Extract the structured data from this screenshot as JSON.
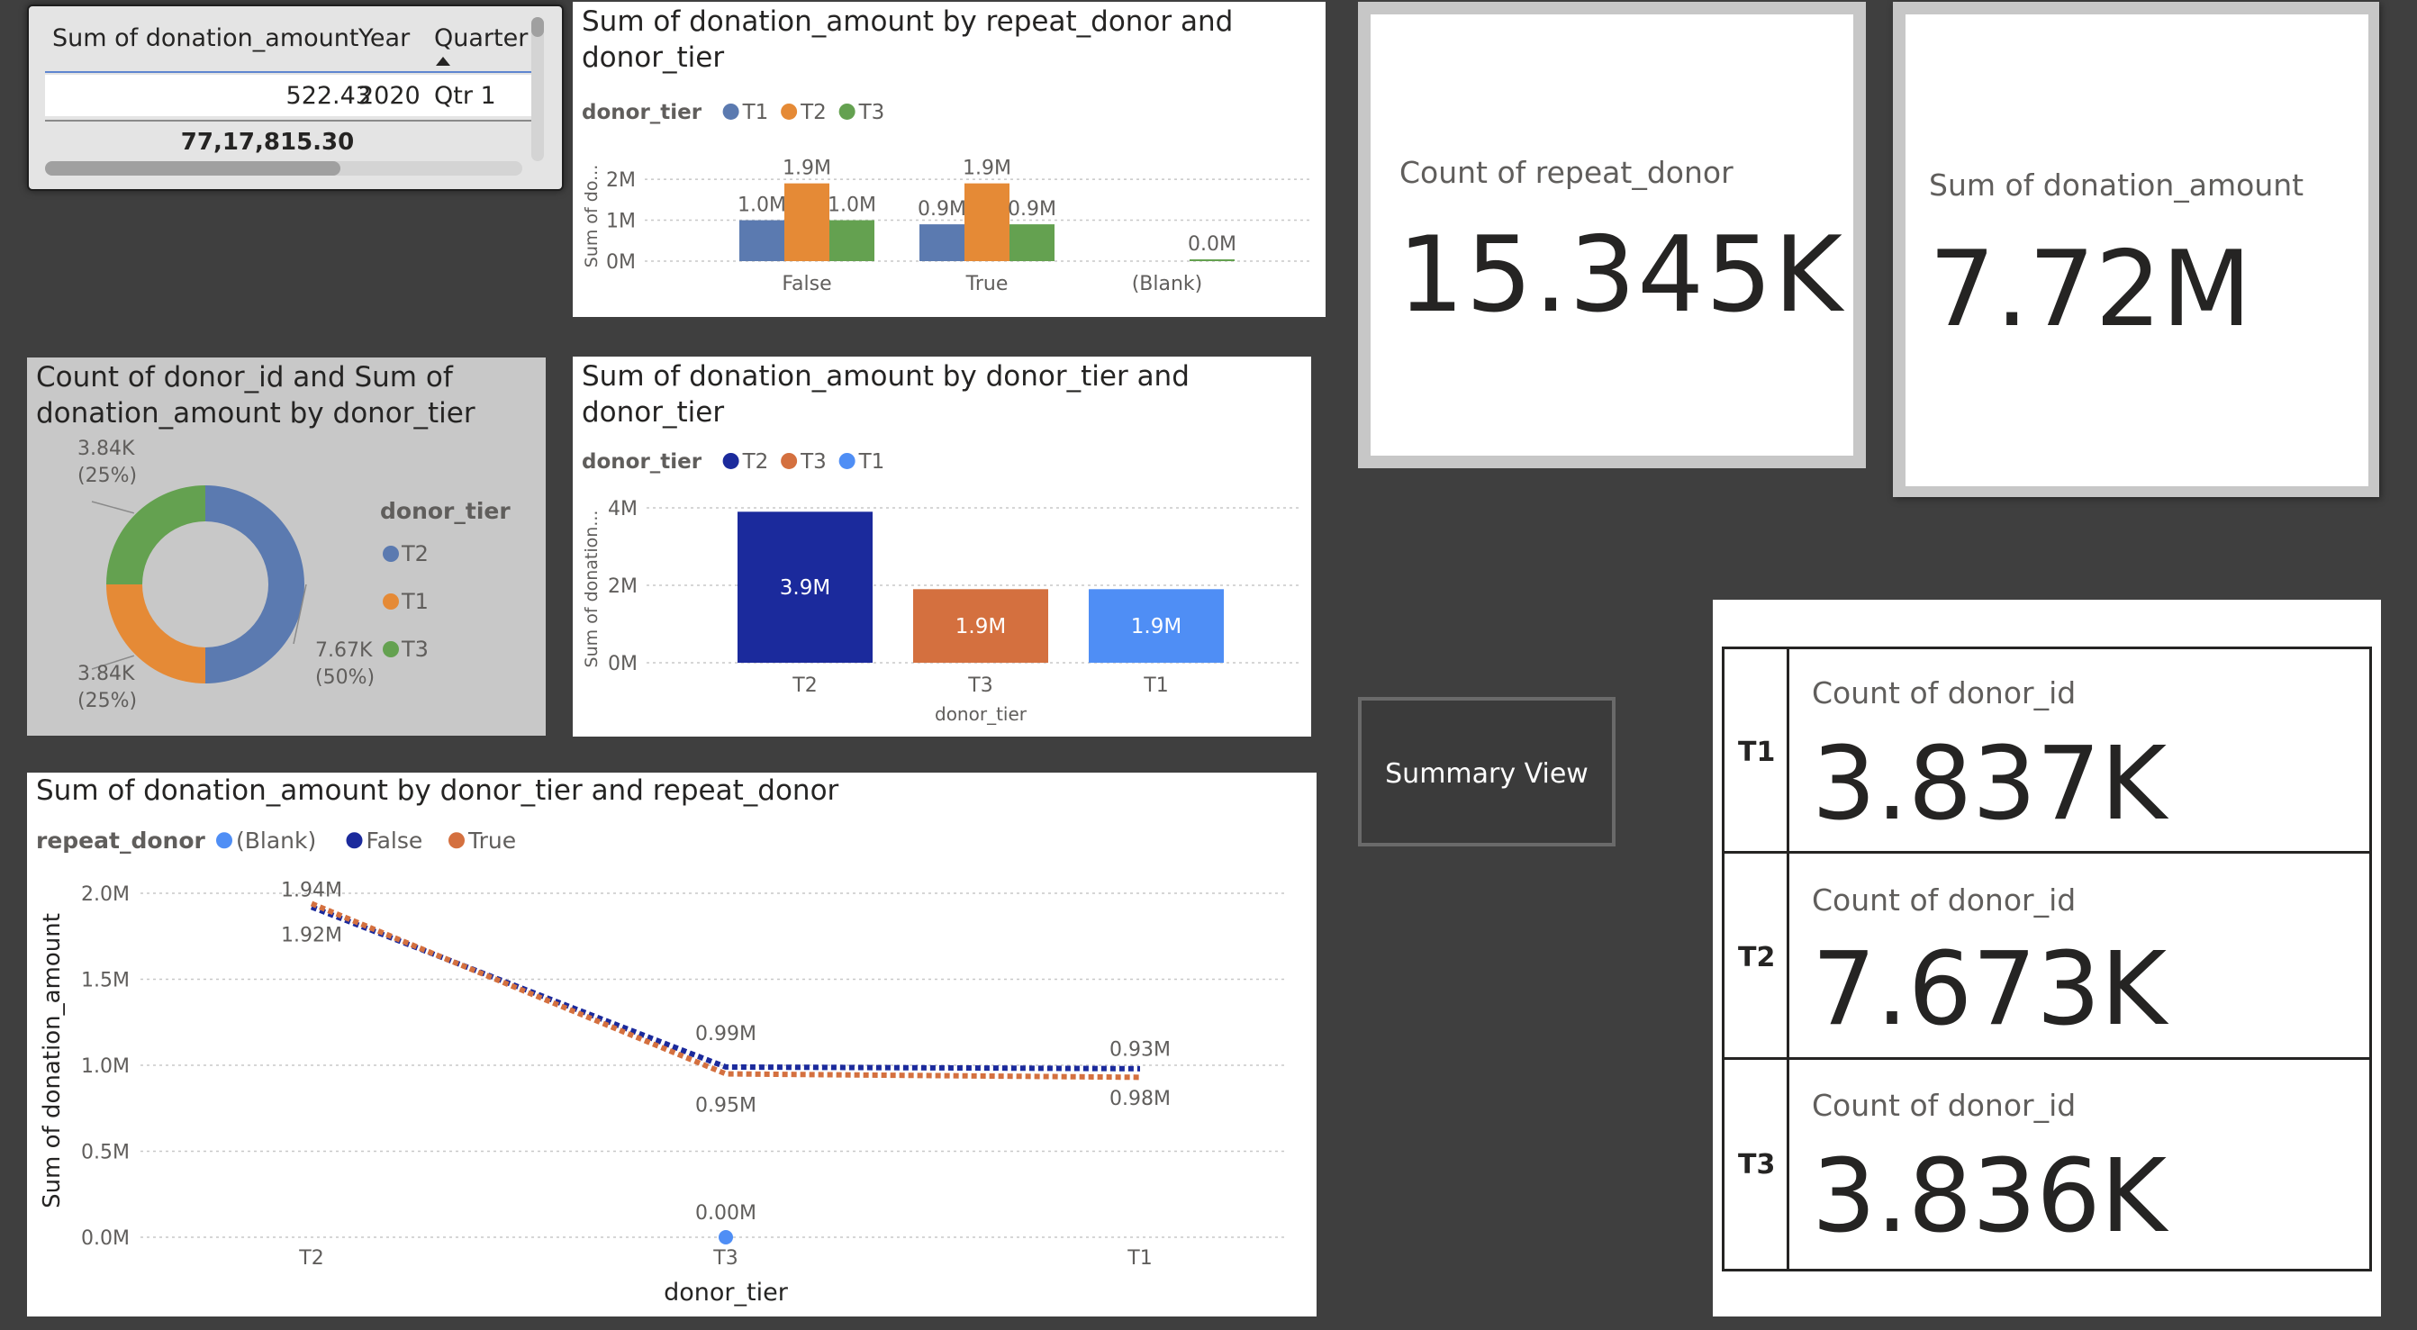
{
  "table_visual": {
    "headers": [
      "Sum of donation_amount",
      "Year",
      "Quarter"
    ],
    "rows": [
      [
        "522.43",
        "2020",
        "Qtr 1"
      ]
    ],
    "total": "77,17,815.30"
  },
  "chart_data": [
    {
      "id": "bar_repeat_tier",
      "type": "bar",
      "title": "Sum of donation_amount by repeat_donor and donor_tier",
      "legend_title": "donor_tier",
      "legend_position": "top-left",
      "categories": [
        "False",
        "True",
        "(Blank)"
      ],
      "ylabel": "Sum of do...",
      "yticks": [
        "0M",
        "1M",
        "2M"
      ],
      "ylim": [
        0,
        2200000
      ],
      "series": [
        {
          "name": "T1",
          "color": "#5b7ab0",
          "values": [
            1000000,
            900000,
            0
          ],
          "labels": [
            "1.0M",
            "0.9M",
            ""
          ]
        },
        {
          "name": "T2",
          "color": "#e58a36",
          "values": [
            1900000,
            1900000,
            0
          ],
          "labels": [
            "1.9M",
            "1.9M",
            ""
          ]
        },
        {
          "name": "T3",
          "color": "#64a150",
          "values": [
            1000000,
            900000,
            0
          ],
          "labels": [
            "1.0M",
            "0.9M",
            "0.0M"
          ]
        }
      ]
    },
    {
      "id": "donut_tier",
      "type": "pie",
      "title": "Count of donor_id and Sum of donation_amount by donor_tier",
      "legend_title": "donor_tier",
      "legend_position": "right",
      "slices": [
        {
          "name": "T2",
          "value": 7673,
          "label": "7.67K",
          "pct": "(50%)",
          "color": "#5b7ab0"
        },
        {
          "name": "T1",
          "value": 3837,
          "label": "3.84K",
          "pct": "(25%)",
          "color": "#e58a36"
        },
        {
          "name": "T3",
          "value": 3836,
          "label": "3.84K",
          "pct": "(25%)",
          "color": "#64a150"
        }
      ]
    },
    {
      "id": "bar_tier",
      "type": "bar",
      "title": "Sum of donation_amount by donor_tier and donor_tier",
      "legend_title": "donor_tier",
      "legend_position": "top-left",
      "categories": [
        "T2",
        "T3",
        "T1"
      ],
      "xlabel": "donor_tier",
      "ylabel": "Sum of donation...",
      "yticks": [
        "0M",
        "2M",
        "4M"
      ],
      "ylim": [
        0,
        4000000
      ],
      "colors": [
        "#1b2a9c",
        "#d4703f",
        "#4f8ef5"
      ],
      "legend": [
        "T2",
        "T3",
        "T1"
      ],
      "values": [
        3900000,
        1900000,
        1900000
      ],
      "labels": [
        "3.9M",
        "1.9M",
        "1.9M"
      ]
    },
    {
      "id": "line_tier_repeat",
      "type": "line",
      "title": "Sum of donation_amount by donor_tier and repeat_donor",
      "legend_title": "repeat_donor",
      "legend_position": "top-left",
      "categories": [
        "T2",
        "T3",
        "T1"
      ],
      "xlabel": "donor_tier",
      "ylabel": "Sum of donation_amount",
      "yticks": [
        "0.0M",
        "0.5M",
        "1.0M",
        "1.5M",
        "2.0M"
      ],
      "ylim": [
        0,
        2000000
      ],
      "series": [
        {
          "name": "(Blank)",
          "color": "#4f8ef5",
          "values": [
            null,
            0,
            null
          ],
          "labels": [
            "",
            "0.00M",
            ""
          ]
        },
        {
          "name": "False",
          "color": "#1b2a9c",
          "values": [
            1920000,
            990000,
            980000
          ],
          "labels": [
            "1.92M",
            "0.99M",
            "0.98M"
          ]
        },
        {
          "name": "True",
          "color": "#d4703f",
          "values": [
            1940000,
            950000,
            930000
          ],
          "labels": [
            "1.94M",
            "0.95M",
            "0.93M"
          ]
        }
      ]
    }
  ],
  "cards": {
    "repeat_donor": {
      "label": "Count of repeat_donor",
      "value": "15.345K"
    },
    "donation_sum": {
      "label": "Sum of donation_amount",
      "value": "7.72M"
    }
  },
  "summary_button": {
    "label": "Summary View"
  },
  "multi_card": {
    "rows": [
      {
        "tier": "T1",
        "label": "Count of donor_id",
        "value": "3.837K"
      },
      {
        "tier": "T2",
        "label": "Count of donor_id",
        "value": "7.673K"
      },
      {
        "tier": "T3",
        "label": "Count of donor_id",
        "value": "3.836K"
      }
    ]
  }
}
